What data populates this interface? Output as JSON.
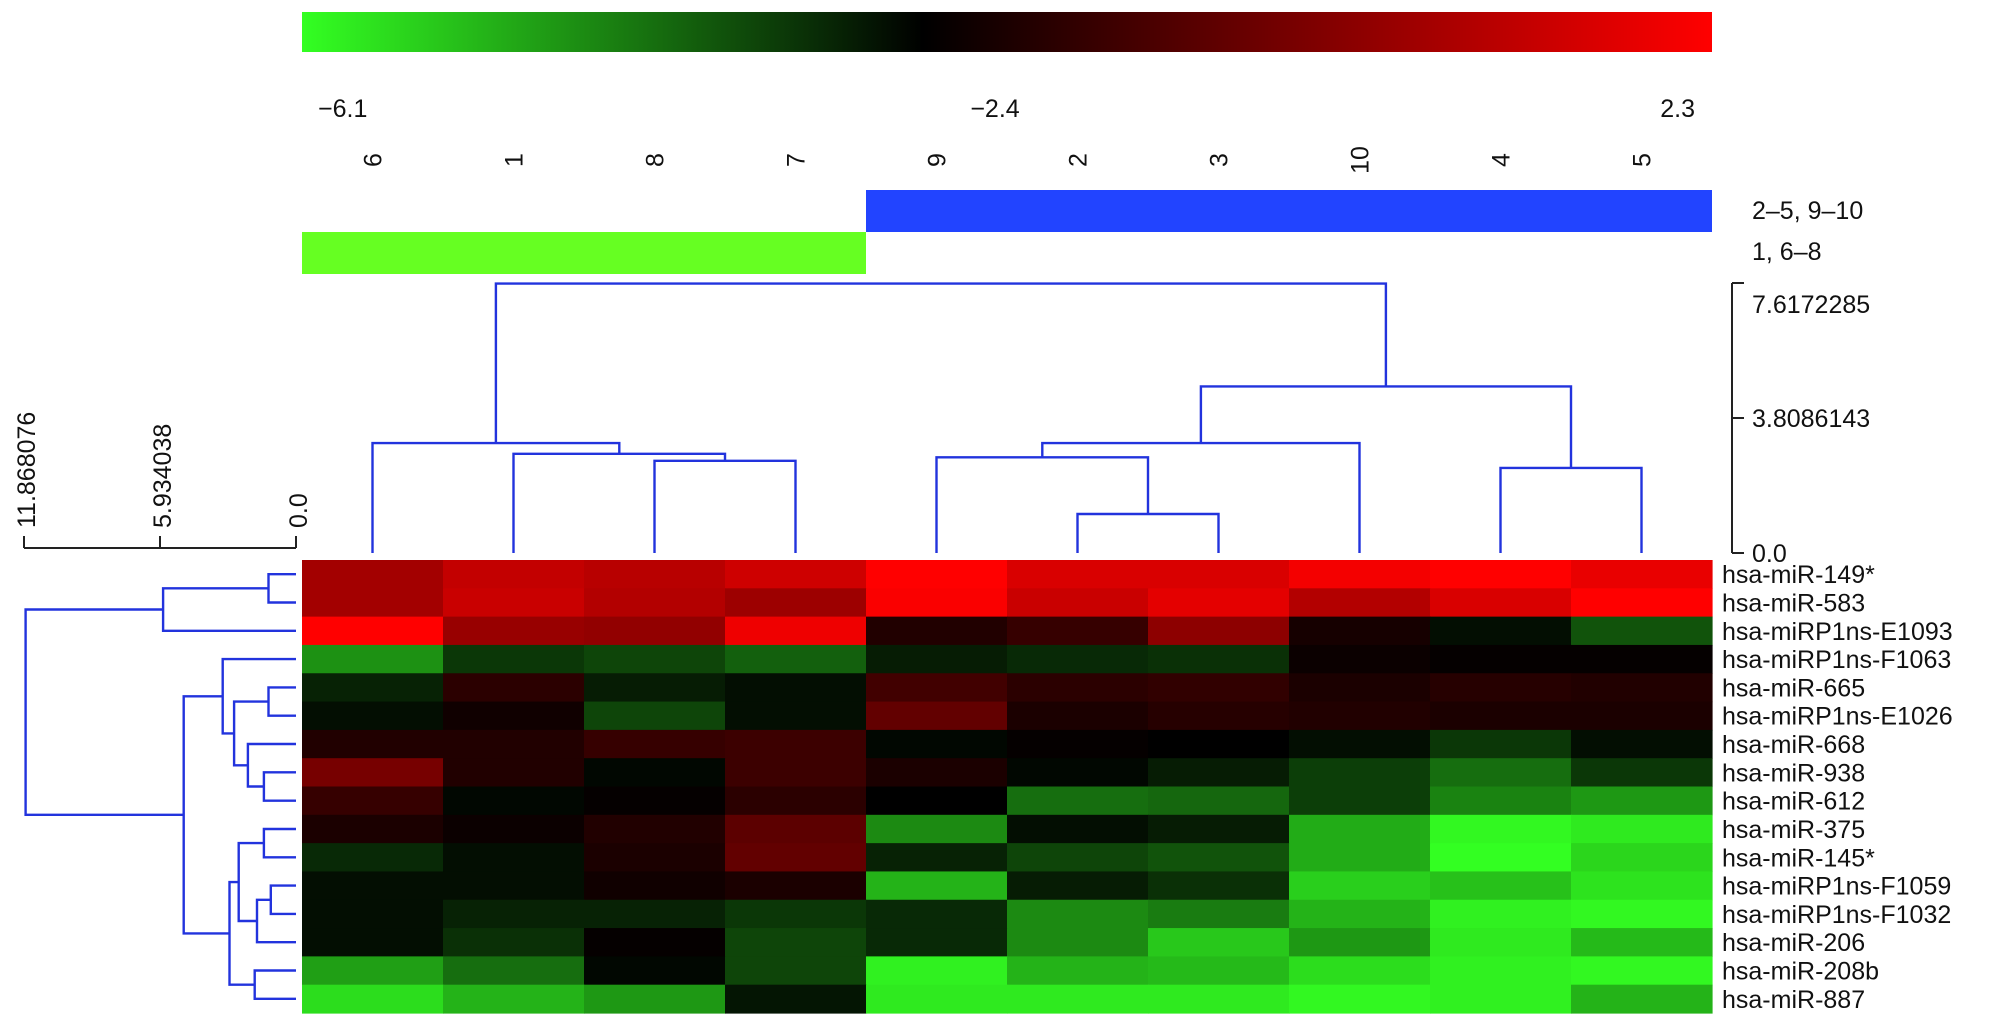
{
  "chart_data": {
    "type": "heatmap",
    "title": "",
    "xlabel": "",
    "ylabel": "",
    "color_scale": {
      "min": -6.1,
      "mid": -2.4,
      "max": 2.3,
      "min_label": "−6.1",
      "mid_label": "−2.4",
      "max_label": "2.3",
      "low_color": "#33ff22",
      "mid_color": "#000000",
      "high_color": "#ff0000"
    },
    "columns": [
      "6",
      "1",
      "8",
      "7",
      "9",
      "2",
      "3",
      "10",
      "4",
      "5"
    ],
    "rows": [
      "hsa-miR-149*",
      "hsa-miR-583",
      "hsa-miRP1ns-E1093",
      "hsa-miRP1ns-F1063",
      "hsa-miR-665",
      "hsa-miRP1ns-E1026",
      "hsa-miR-668",
      "hsa-miR-938",
      "hsa-miR-612",
      "hsa-miR-375",
      "hsa-miR-145*",
      "hsa-miRP1ns-F1059",
      "hsa-miRP1ns-F1032",
      "hsa-miR-206",
      "hsa-miR-208b",
      "hsa-miR-887"
    ],
    "values": [
      [
        0.6,
        1.2,
        1.0,
        1.4,
        2.3,
        1.6,
        1.6,
        2.1,
        2.3,
        1.9
      ],
      [
        0.6,
        1.3,
        0.9,
        0.5,
        2.2,
        1.3,
        1.8,
        0.9,
        1.6,
        2.3
      ],
      [
        2.3,
        0.4,
        0.3,
        2.0,
        -1.8,
        -1.4,
        0.2,
        -2.0,
        -2.6,
        -3.6
      ],
      [
        -4.5,
        -3.2,
        -3.4,
        -3.8,
        -2.8,
        -3.0,
        -3.1,
        -2.2,
        -2.3,
        -2.3
      ],
      [
        -2.9,
        -1.6,
        -2.8,
        -2.6,
        -1.2,
        -1.6,
        -1.5,
        -1.9,
        -1.7,
        -1.8
      ],
      [
        -2.6,
        -2.1,
        -3.4,
        -2.6,
        -0.6,
        -1.9,
        -1.7,
        -1.8,
        -1.9,
        -1.9
      ],
      [
        -1.8,
        -1.8,
        -1.4,
        -1.3,
        -2.5,
        -2.3,
        -2.4,
        -2.6,
        -3.2,
        -2.6
      ],
      [
        -0.2,
        -1.8,
        -2.5,
        -1.3,
        -1.9,
        -2.5,
        -2.8,
        -3.3,
        -4.0,
        -3.2
      ],
      [
        -1.4,
        -2.5,
        -2.3,
        -1.6,
        -2.4,
        -4.0,
        -3.9,
        -3.3,
        -4.3,
        -4.6
      ],
      [
        -1.9,
        -2.2,
        -1.8,
        -0.7,
        -4.4,
        -2.6,
        -2.8,
        -4.9,
        -6.0,
        -5.8
      ],
      [
        -3.0,
        -2.6,
        -1.9,
        -0.6,
        -2.9,
        -3.4,
        -3.6,
        -4.9,
        -6.1,
        -5.5
      ],
      [
        -2.6,
        -2.6,
        -2.1,
        -1.9,
        -5.0,
        -2.8,
        -3.1,
        -5.4,
        -5.2,
        -5.7
      ],
      [
        -2.6,
        -2.9,
        -2.9,
        -3.2,
        -3.0,
        -4.4,
        -4.2,
        -5.0,
        -5.9,
        -6.0
      ],
      [
        -2.6,
        -3.1,
        -2.3,
        -3.4,
        -3.0,
        -4.4,
        -5.3,
        -4.6,
        -5.8,
        -5.1
      ],
      [
        -4.7,
        -4.0,
        -2.5,
        -3.4,
        -5.9,
        -5.0,
        -5.1,
        -5.6,
        -5.9,
        -6.0
      ],
      [
        -5.6,
        -5.0,
        -4.6,
        -2.7,
        -5.8,
        -5.8,
        -5.8,
        -6.0,
        -5.9,
        -5.0
      ]
    ],
    "column_groups": [
      {
        "label": "2–5, 9–10",
        "columns": [
          "9",
          "2",
          "3",
          "10",
          "4",
          "5"
        ],
        "color": "#2244ff"
      },
      {
        "label": "1, 6–8",
        "columns": [
          "6",
          "1",
          "8",
          "7"
        ],
        "color": "#66ff22"
      }
    ],
    "column_dendrogram": {
      "scale_max": 7.6172285,
      "tick_values": [
        7.6172285,
        3.8086143,
        0.0
      ],
      "tick_labels": [
        "7.6172285",
        "3.8086143",
        "0.0"
      ],
      "merges": [
        {
          "left": {
            "leaf": 5
          },
          "right": {
            "leaf": 6
          },
          "height": 1.1
        },
        {
          "left": {
            "leaf": 2
          },
          "right": {
            "leaf": 3
          },
          "height": 2.6
        },
        {
          "left": {
            "leaf": 1
          },
          "right": {
            "node": 1
          },
          "height": 2.8
        },
        {
          "left": {
            "leaf": 4
          },
          "right": {
            "node": 0
          },
          "height": 2.7
        },
        {
          "left": {
            "leaf": 8
          },
          "right": {
            "leaf": 9
          },
          "height": 2.4
        },
        {
          "left": {
            "leaf": 0
          },
          "right": {
            "node": 2
          },
          "height": 3.1
        },
        {
          "left": {
            "leaf": 7
          },
          "right": {
            "node": 3
          },
          "height": 3.1
        },
        {
          "left": {
            "node": 6
          },
          "right": {
            "node": 4
          },
          "height": 4.7
        },
        {
          "left": {
            "node": 5
          },
          "right": {
            "node": 7
          },
          "height": 7.6
        }
      ]
    },
    "row_dendrogram": {
      "scale_max": 11.868076,
      "tick_values": [
        11.868076,
        5.934038,
        0.0
      ],
      "tick_labels": [
        "11.868076",
        "5.934038",
        "0.0"
      ],
      "merges": [
        {
          "left": {
            "leaf": 0
          },
          "right": {
            "leaf": 1
          },
          "height": 1.2
        },
        {
          "left": {
            "node": 0
          },
          "right": {
            "leaf": 2
          },
          "height": 5.8
        },
        {
          "left": {
            "leaf": 4
          },
          "right": {
            "leaf": 5
          },
          "height": 1.2
        },
        {
          "left": {
            "leaf": 7
          },
          "right": {
            "leaf": 8
          },
          "height": 1.4
        },
        {
          "left": {
            "leaf": 6
          },
          "right": {
            "node": 3
          },
          "height": 2.1
        },
        {
          "left": {
            "node": 2
          },
          "right": {
            "node": 4
          },
          "height": 2.7
        },
        {
          "left": {
            "leaf": 3
          },
          "right": {
            "node": 5
          },
          "height": 3.2
        },
        {
          "left": {
            "leaf": 9
          },
          "right": {
            "leaf": 10
          },
          "height": 1.4
        },
        {
          "left": {
            "leaf": 11
          },
          "right": {
            "leaf": 12
          },
          "height": 1.1
        },
        {
          "left": {
            "node": 8
          },
          "right": {
            "leaf": 13
          },
          "height": 1.7
        },
        {
          "left": {
            "node": 7
          },
          "right": {
            "node": 9
          },
          "height": 2.5
        },
        {
          "left": {
            "leaf": 14
          },
          "right": {
            "leaf": 15
          },
          "height": 1.8
        },
        {
          "left": {
            "node": 10
          },
          "right": {
            "node": 11
          },
          "height": 2.9
        },
        {
          "left": {
            "node": 6
          },
          "right": {
            "node": 12
          },
          "height": 4.9
        },
        {
          "left": {
            "node": 1
          },
          "right": {
            "node": 13
          },
          "height": 11.8
        }
      ]
    }
  }
}
